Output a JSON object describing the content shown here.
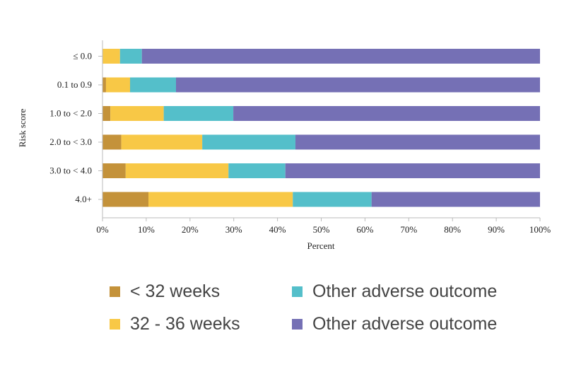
{
  "chart_data": {
    "type": "bar",
    "orientation": "horizontal",
    "stacked": true,
    "title": "",
    "xlabel": "Percent",
    "ylabel": "Risk score",
    "xlim": [
      0,
      100
    ],
    "x_ticks": [
      "0%",
      "10%",
      "20%",
      "30%",
      "40%",
      "50%",
      "60%",
      "70%",
      "80%",
      "90%",
      "100%"
    ],
    "categories": [
      "≤ 0.0",
      "0.1 to 0.9",
      "1.0 to < 2.0",
      "2.0 to < 3.0",
      "3.0 to < 4.0",
      "4.0+"
    ],
    "series": [
      {
        "name": "< 32 weeks",
        "color": "#c4923a",
        "values": [
          0,
          0.8,
          1.8,
          4.3,
          5.3,
          10.5
        ]
      },
      {
        "name": "32 - 36 weeks",
        "color": "#f8c846",
        "values": [
          4.0,
          5.5,
          12.2,
          18.5,
          23.5,
          33.0
        ]
      },
      {
        "name": "Other adverse outcome",
        "color": "#54bfca",
        "values": [
          5.0,
          10.5,
          15.9,
          21.3,
          13.0,
          18.0
        ]
      },
      {
        "name": "Other adverse outcome",
        "color": "#7570b5",
        "values": [
          91.0,
          83.2,
          70.1,
          55.9,
          58.2,
          38.5
        ]
      }
    ],
    "grid": false,
    "legend_position": "bottom"
  }
}
